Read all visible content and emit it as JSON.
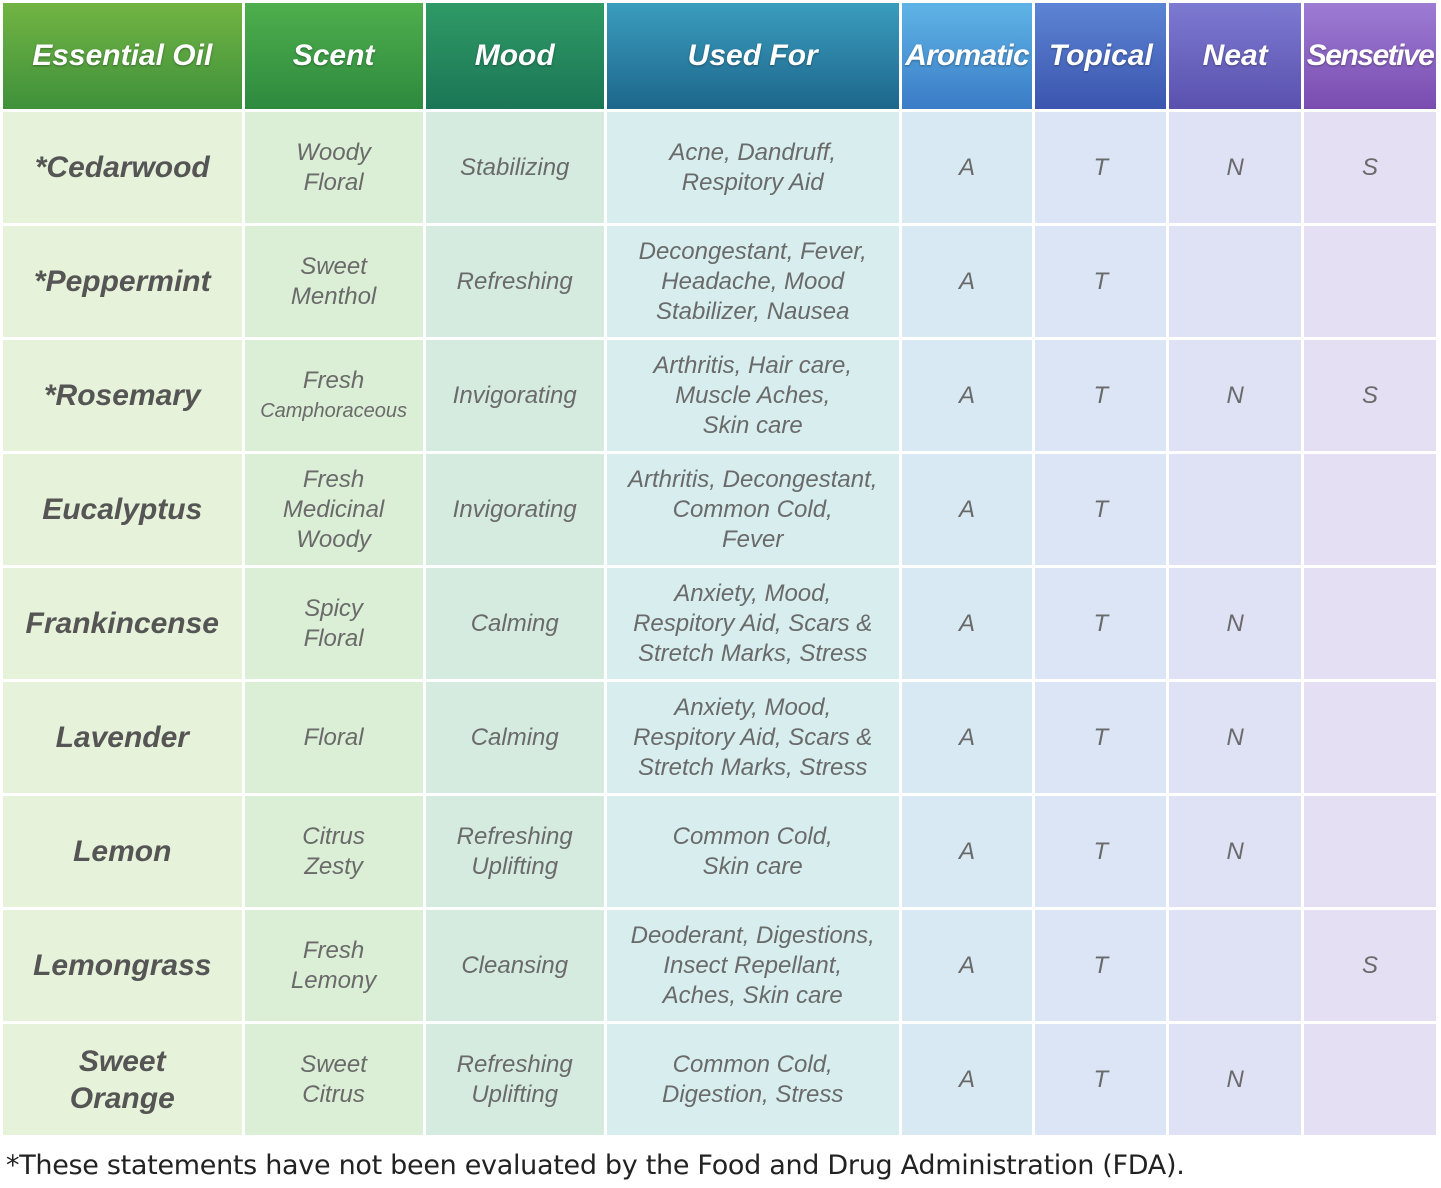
{
  "table": {
    "header": [
      "Essential Oil",
      "Scent",
      "Mood",
      "Used For",
      "Aromatic",
      "Topical",
      "Neat",
      "Sensetive"
    ],
    "rows": [
      [
        [
          "*Cedarwood"
        ],
        [
          "Woody",
          "Floral"
        ],
        [
          "Stabilizing"
        ],
        [
          "Acne, Dandruff,",
          "Respitory Aid"
        ],
        "A",
        "T",
        "N",
        "S"
      ],
      [
        [
          "*Peppermint"
        ],
        [
          "Sweet",
          "Menthol"
        ],
        [
          "Refreshing"
        ],
        [
          "Decongestant, Fever,",
          "Headache, Mood",
          "Stabilizer, Nausea"
        ],
        "A",
        "T",
        null,
        null
      ],
      [
        [
          "*Rosemary"
        ],
        [
          "Fresh",
          "Camphoraceous"
        ],
        [
          "Invigorating"
        ],
        [
          "Arthritis, Hair care,",
          "Muscle Aches,",
          "Skin care"
        ],
        "A",
        "T",
        "N",
        "S"
      ],
      [
        [
          "Eucalyptus"
        ],
        [
          "Fresh",
          "Medicinal",
          "Woody"
        ],
        [
          "Invigorating"
        ],
        [
          "Arthritis, Decongestant,",
          "Common Cold,",
          "Fever"
        ],
        "A",
        "T",
        null,
        null
      ],
      [
        [
          "Frankincense"
        ],
        [
          "Spicy",
          "Floral"
        ],
        [
          "Calming"
        ],
        [
          "Anxiety, Mood,",
          "Respitory Aid, Scars &",
          "Stretch Marks, Stress"
        ],
        "A",
        "T",
        "N",
        null
      ],
      [
        [
          "Lavender"
        ],
        [
          "Floral"
        ],
        [
          "Calming"
        ],
        [
          "Anxiety, Mood,",
          "Respitory Aid, Scars &",
          "Stretch Marks, Stress"
        ],
        "A",
        "T",
        "N",
        null
      ],
      [
        [
          "Lemon"
        ],
        [
          "Citrus",
          "Zesty"
        ],
        [
          "Refreshing",
          "Uplifting"
        ],
        [
          "Common Cold,",
          "Skin care"
        ],
        "A",
        "T",
        "N",
        null
      ],
      [
        [
          "Lemongrass"
        ],
        [
          "Fresh",
          "Lemony"
        ],
        [
          "Cleansing"
        ],
        [
          "Deoderant, Digestions,",
          "Insect Repellant,",
          "Aches, Skin care"
        ],
        "A",
        "T",
        null,
        "S"
      ],
      [
        [
          "Sweet",
          "Orange"
        ],
        [
          "Sweet",
          "Citrus"
        ],
        [
          "Refreshing",
          "Uplifting"
        ],
        [
          "Common Cold,",
          "Digestion, Stress"
        ],
        "A",
        "T",
        "N",
        null
      ]
    ]
  },
  "footnote": "*These statements have not been evaluated by the Food and Drug Administration (FDA)."
}
